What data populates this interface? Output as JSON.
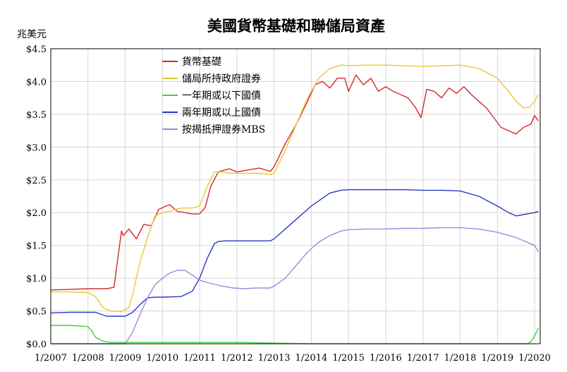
{
  "chart_data": {
    "type": "line",
    "title": "美國貨幣基礎和聯儲局資產",
    "ylabel": "兆美元",
    "xlabel": "",
    "xlim": [
      2007.0,
      2020.15
    ],
    "ylim": [
      0,
      4.5
    ],
    "y_ticks": [
      0,
      0.5,
      1.0,
      1.5,
      2.0,
      2.5,
      3.0,
      3.5,
      4.0,
      4.5
    ],
    "y_tick_labels": [
      "$0.0",
      "$0.5",
      "$1.0",
      "$1.5",
      "$2.0",
      "$2.5",
      "$3.0",
      "$3.5",
      "$4.0",
      "$4.5"
    ],
    "x_ticks": [
      2007,
      2008,
      2009,
      2010,
      2011,
      2012,
      2013,
      2014,
      2015,
      2016,
      2017,
      2018,
      2019,
      2020
    ],
    "x_tick_labels": [
      "1/2007",
      "1/2008",
      "1/2009",
      "1/2010",
      "1/2011",
      "1/2012",
      "1/2013",
      "1/2014",
      "1/2015",
      "1/2016",
      "1/2017",
      "1/2018",
      "1/2019",
      "1/2020"
    ],
    "grid": true,
    "legend_position": "top-left",
    "series": [
      {
        "name": "貨幣基礎",
        "color": "#d42a2a",
        "x": [
          2007.0,
          2007.5,
          2008.0,
          2008.5,
          2008.7,
          2008.8,
          2008.9,
          2008.95,
          2009.1,
          2009.3,
          2009.5,
          2009.7,
          2009.9,
          2010.1,
          2010.2,
          2010.4,
          2010.6,
          2010.8,
          2011.0,
          2011.15,
          2011.3,
          2011.5,
          2011.8,
          2012.0,
          2012.3,
          2012.6,
          2012.9,
          2013.0,
          2013.3,
          2013.6,
          2013.9,
          2014.1,
          2014.3,
          2014.5,
          2014.7,
          2014.9,
          2015.0,
          2015.2,
          2015.4,
          2015.6,
          2015.8,
          2016.0,
          2016.2,
          2016.4,
          2016.6,
          2016.8,
          2016.95,
          2017.1,
          2017.3,
          2017.5,
          2017.7,
          2017.9,
          2018.1,
          2018.3,
          2018.5,
          2018.7,
          2018.9,
          2019.1,
          2019.3,
          2019.5,
          2019.7,
          2019.9,
          2020.0,
          2020.1
        ],
        "values": [
          0.82,
          0.83,
          0.84,
          0.84,
          0.86,
          1.3,
          1.72,
          1.65,
          1.75,
          1.6,
          1.82,
          1.8,
          2.05,
          2.1,
          2.12,
          2.02,
          2.0,
          1.98,
          1.98,
          2.08,
          2.4,
          2.62,
          2.67,
          2.62,
          2.65,
          2.68,
          2.63,
          2.7,
          3.05,
          3.35,
          3.7,
          3.95,
          4.0,
          3.9,
          4.05,
          4.05,
          3.85,
          4.1,
          3.95,
          4.05,
          3.85,
          3.92,
          3.85,
          3.8,
          3.75,
          3.6,
          3.45,
          3.88,
          3.85,
          3.75,
          3.9,
          3.82,
          3.92,
          3.8,
          3.7,
          3.6,
          3.45,
          3.3,
          3.25,
          3.2,
          3.3,
          3.35,
          3.48,
          3.4
        ]
      },
      {
        "name": "儲局所持政府證券",
        "color": "#e8c73a",
        "x": [
          2007.0,
          2007.5,
          2008.0,
          2008.2,
          2008.4,
          2008.6,
          2008.9,
          2009.1,
          2009.2,
          2009.4,
          2009.6,
          2009.8,
          2010.0,
          2010.2,
          2010.4,
          2010.6,
          2010.8,
          2011.0,
          2011.2,
          2011.4,
          2011.6,
          2011.8,
          2012.0,
          2012.3,
          2012.6,
          2012.9,
          2013.0,
          2013.3,
          2013.6,
          2013.9,
          2014.2,
          2014.5,
          2014.8,
          2015.0,
          2015.5,
          2016.0,
          2016.5,
          2017.0,
          2017.5,
          2018.0,
          2018.5,
          2019.0,
          2019.3,
          2019.5,
          2019.7,
          2019.85,
          2020.0,
          2020.1
        ],
        "values": [
          0.79,
          0.79,
          0.78,
          0.72,
          0.55,
          0.5,
          0.49,
          0.55,
          0.75,
          1.25,
          1.62,
          1.95,
          2.0,
          2.02,
          2.06,
          2.07,
          2.07,
          2.1,
          2.4,
          2.62,
          2.62,
          2.6,
          2.6,
          2.6,
          2.6,
          2.58,
          2.6,
          2.95,
          3.35,
          3.75,
          4.05,
          4.2,
          4.25,
          4.24,
          4.25,
          4.25,
          4.24,
          4.23,
          4.24,
          4.25,
          4.2,
          4.05,
          3.85,
          3.7,
          3.6,
          3.6,
          3.7,
          3.8
        ]
      },
      {
        "name": "一年期或以下國債",
        "color": "#3fd23f",
        "x": [
          2007.0,
          2007.5,
          2007.8,
          2008.0,
          2008.1,
          2008.2,
          2008.4,
          2008.6,
          2009.0,
          2010.0,
          2011.0,
          2012.0,
          2013.0,
          2014.0,
          2015.0,
          2016.0,
          2017.0,
          2018.0,
          2019.0,
          2019.8,
          2019.9,
          2020.0,
          2020.1
        ],
        "values": [
          0.28,
          0.28,
          0.27,
          0.26,
          0.2,
          0.1,
          0.04,
          0.02,
          0.02,
          0.02,
          0.02,
          0.02,
          0.01,
          0.0,
          0.0,
          0.0,
          0.0,
          0.0,
          0.0,
          0.0,
          0.03,
          0.12,
          0.24
        ]
      },
      {
        "name": "兩年期或以上國債",
        "color": "#2b38c7",
        "x": [
          2007.0,
          2007.5,
          2008.0,
          2008.2,
          2008.5,
          2009.0,
          2009.2,
          2009.4,
          2009.6,
          2009.8,
          2010.0,
          2010.5,
          2010.8,
          2011.0,
          2011.2,
          2011.4,
          2011.5,
          2011.7,
          2012.0,
          2012.5,
          2012.9,
          2013.0,
          2013.5,
          2014.0,
          2014.5,
          2014.8,
          2015.0,
          2015.5,
          2016.0,
          2016.5,
          2017.0,
          2017.5,
          2018.0,
          2018.5,
          2019.0,
          2019.3,
          2019.5,
          2019.7,
          2020.0,
          2020.1
        ],
        "values": [
          0.47,
          0.48,
          0.48,
          0.48,
          0.42,
          0.42,
          0.48,
          0.6,
          0.7,
          0.71,
          0.71,
          0.72,
          0.8,
          1.0,
          1.3,
          1.53,
          1.56,
          1.57,
          1.57,
          1.57,
          1.57,
          1.6,
          1.85,
          2.1,
          2.3,
          2.34,
          2.35,
          2.35,
          2.35,
          2.35,
          2.34,
          2.34,
          2.33,
          2.25,
          2.1,
          2.0,
          1.95,
          1.97,
          2.0,
          2.02
        ]
      },
      {
        "name": "按揭抵押證券MBS",
        "color": "#a586e0",
        "x": [
          2007.0,
          2008.0,
          2008.9,
          2009.0,
          2009.2,
          2009.4,
          2009.6,
          2009.8,
          2010.0,
          2010.2,
          2010.4,
          2010.6,
          2010.8,
          2011.0,
          2011.3,
          2011.6,
          2011.9,
          2012.2,
          2012.5,
          2012.9,
          2013.0,
          2013.3,
          2013.6,
          2013.9,
          2014.2,
          2014.5,
          2014.8,
          2015.0,
          2015.5,
          2016.0,
          2016.5,
          2017.0,
          2017.5,
          2018.0,
          2018.5,
          2019.0,
          2019.5,
          2020.0,
          2020.1
        ],
        "values": [
          0.0,
          0.0,
          0.0,
          0.0,
          0.18,
          0.45,
          0.7,
          0.9,
          1.0,
          1.08,
          1.12,
          1.12,
          1.05,
          0.97,
          0.92,
          0.88,
          0.85,
          0.84,
          0.85,
          0.85,
          0.88,
          1.0,
          1.2,
          1.4,
          1.55,
          1.65,
          1.72,
          1.74,
          1.75,
          1.75,
          1.76,
          1.76,
          1.77,
          1.77,
          1.75,
          1.7,
          1.62,
          1.5,
          1.4
        ]
      }
    ]
  }
}
